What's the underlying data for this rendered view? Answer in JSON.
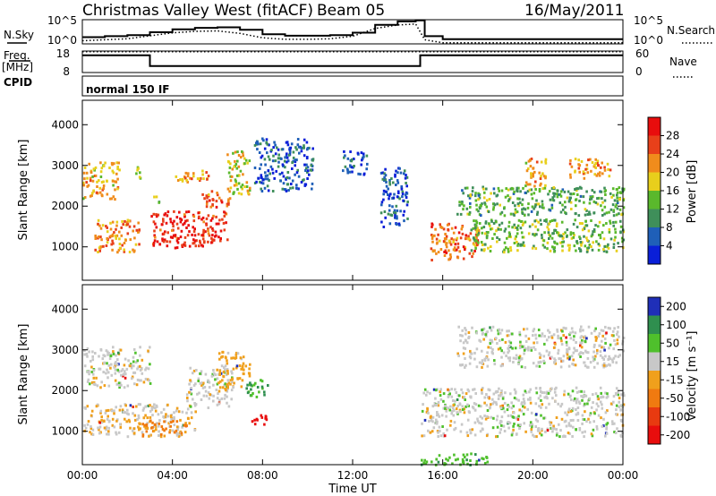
{
  "header": {
    "station": "Christmas Valley West (fitACF)",
    "beam": "Beam 05",
    "date": "16/May/2011"
  },
  "noise_panel": {
    "left_label": "N.Sky",
    "right_label": "N.Search",
    "left_ticks": [
      "10^5",
      "10^0"
    ],
    "right_ticks": [
      "10^5",
      "10^0"
    ]
  },
  "freq_panel": {
    "left_label_line1": "Freq.",
    "left_label_line2": "[MHz]",
    "right_label": "Nave",
    "left_ticks": [
      "18",
      "8"
    ],
    "right_ticks": [
      "60",
      "0"
    ]
  },
  "cpid_panel": {
    "label": "CPID",
    "program": "normal 150 IF"
  },
  "power_panel": {
    "ylabel": "Slant Range [km]",
    "yticks": [
      "1000",
      "2000",
      "3000",
      "4000"
    ],
    "colorbar_label": "Power [dB]",
    "colorbar_ticks": [
      "4",
      "8",
      "12",
      "16",
      "20",
      "24",
      "28"
    ],
    "colors": [
      "#0a1fd8",
      "#1f5fb8",
      "#3f8f5a",
      "#5ab82c",
      "#e8cf1c",
      "#f08c1c",
      "#e8401a",
      "#e80d0d"
    ]
  },
  "velocity_panel": {
    "ylabel": "Slant Range [km]",
    "yticks": [
      "1000",
      "2000",
      "3000",
      "4000"
    ],
    "colorbar_label": "Velocity [m s⁻¹]",
    "colorbar_ticks": [
      "200",
      "100",
      "50",
      "15",
      "-15",
      "-50",
      "-100",
      "-200"
    ],
    "colors": [
      "#1f2fb8",
      "#2f8f4f",
      "#4fc02c",
      "#c8c8c8",
      "#f0a01c",
      "#f07a10",
      "#e83a10",
      "#e80d0d"
    ]
  },
  "xaxis": {
    "label": "Time UT",
    "ticks": [
      "00:00",
      "04:00",
      "08:00",
      "12:00",
      "16:00",
      "20:00",
      "00:00"
    ]
  },
  "chart_data": {
    "type": "heatmap",
    "title": "Christmas Valley West (fitACF) Beam 05 16/May/2011",
    "xlabel": "Time UT",
    "ylabel": "Slant Range [km]",
    "xlim_hours": [
      0,
      24
    ],
    "ylim_km": [
      180,
      4600
    ],
    "frequency_mhz": [
      {
        "from_hour": 0,
        "to_hour": 3,
        "value": 16
      },
      {
        "from_hour": 3,
        "to_hour": 15,
        "value": 11
      },
      {
        "from_hour": 15,
        "to_hour": 24,
        "value": 16
      }
    ],
    "nave": 58,
    "noise_sky": [
      [
        0,
        1.0
      ],
      [
        1,
        1.2
      ],
      [
        2,
        1.4
      ],
      [
        3,
        2.0
      ],
      [
        4,
        2.6
      ],
      [
        5,
        2.9
      ],
      [
        6,
        3.0
      ],
      [
        7,
        2.5
      ],
      [
        8,
        1.6
      ],
      [
        9,
        1.3
      ],
      [
        10,
        1.3
      ],
      [
        11,
        1.4
      ],
      [
        12,
        1.9
      ],
      [
        13,
        3.5
      ],
      [
        14,
        4.2
      ],
      [
        14.8,
        4.4
      ],
      [
        15.2,
        1.2
      ],
      [
        16,
        0.6
      ],
      [
        18,
        0.6
      ],
      [
        20,
        0.6
      ],
      [
        22,
        0.6
      ],
      [
        24,
        0.6
      ]
    ],
    "power_scatter": [
      {
        "t": [
          0,
          1.6
        ],
        "r": [
          2200,
          3100
        ],
        "db": 20
      },
      {
        "t": [
          0.5,
          2.5
        ],
        "r": [
          900,
          1700
        ],
        "db": 22
      },
      {
        "t": [
          2.2,
          2.6
        ],
        "r": [
          2700,
          3000
        ],
        "db": 16
      },
      {
        "t": [
          3,
          3.4
        ],
        "r": [
          2100,
          2300
        ],
        "db": 14
      },
      {
        "t": [
          3,
          6.4
        ],
        "r": [
          1000,
          1900
        ],
        "db": 28
      },
      {
        "t": [
          4,
          5.6
        ],
        "r": [
          2600,
          2900
        ],
        "db": 22
      },
      {
        "t": [
          5.2,
          6.6
        ],
        "r": [
          2000,
          2400
        ],
        "db": 24
      },
      {
        "t": [
          6.4,
          7.4
        ],
        "r": [
          2300,
          3400
        ],
        "db": 18
      },
      {
        "t": [
          7.6,
          10.2
        ],
        "r": [
          2400,
          3700
        ],
        "db": 6
      },
      {
        "t": [
          11.5,
          12.6
        ],
        "r": [
          2800,
          3400
        ],
        "db": 6
      },
      {
        "t": [
          13.2,
          14.4
        ],
        "r": [
          1500,
          3000
        ],
        "db": 6
      },
      {
        "t": [
          15.4,
          17.6
        ],
        "r": [
          700,
          1600
        ],
        "db": 24
      },
      {
        "t": [
          17.2,
          24
        ],
        "r": [
          900,
          1700
        ],
        "db": 14
      },
      {
        "t": [
          16.6,
          24
        ],
        "r": [
          1800,
          2500
        ],
        "db": 12
      },
      {
        "t": [
          19.6,
          20.6
        ],
        "r": [
          2500,
          3200
        ],
        "db": 20
      },
      {
        "t": [
          21.6,
          23.4
        ],
        "r": [
          2700,
          3200
        ],
        "db": 22
      }
    ],
    "velocity_scatter": [
      {
        "t": [
          0,
          3
        ],
        "r": [
          2100,
          3100
        ],
        "v": 0
      },
      {
        "t": [
          0,
          5
        ],
        "r": [
          900,
          1700
        ],
        "v": -15
      },
      {
        "t": [
          2.6,
          4.6
        ],
        "r": [
          900,
          1300
        ],
        "v": -60
      },
      {
        "t": [
          4.6,
          6.6
        ],
        "r": [
          1600,
          2600
        ],
        "v": 0
      },
      {
        "t": [
          6,
          7.4
        ],
        "r": [
          2000,
          3000
        ],
        "v": -30
      },
      {
        "t": [
          7.2,
          8.2
        ],
        "r": [
          1800,
          2300
        ],
        "v": 80
      },
      {
        "t": [
          7.4,
          8.2
        ],
        "r": [
          1200,
          1500
        ],
        "v": -200
      },
      {
        "t": [
          15,
          24
        ],
        "r": [
          900,
          2100
        ],
        "v": 0
      },
      {
        "t": [
          16.6,
          24
        ],
        "r": [
          2600,
          3600
        ],
        "v": 0
      },
      {
        "t": [
          15,
          18
        ],
        "r": [
          200,
          500
        ],
        "v": 60
      }
    ]
  }
}
